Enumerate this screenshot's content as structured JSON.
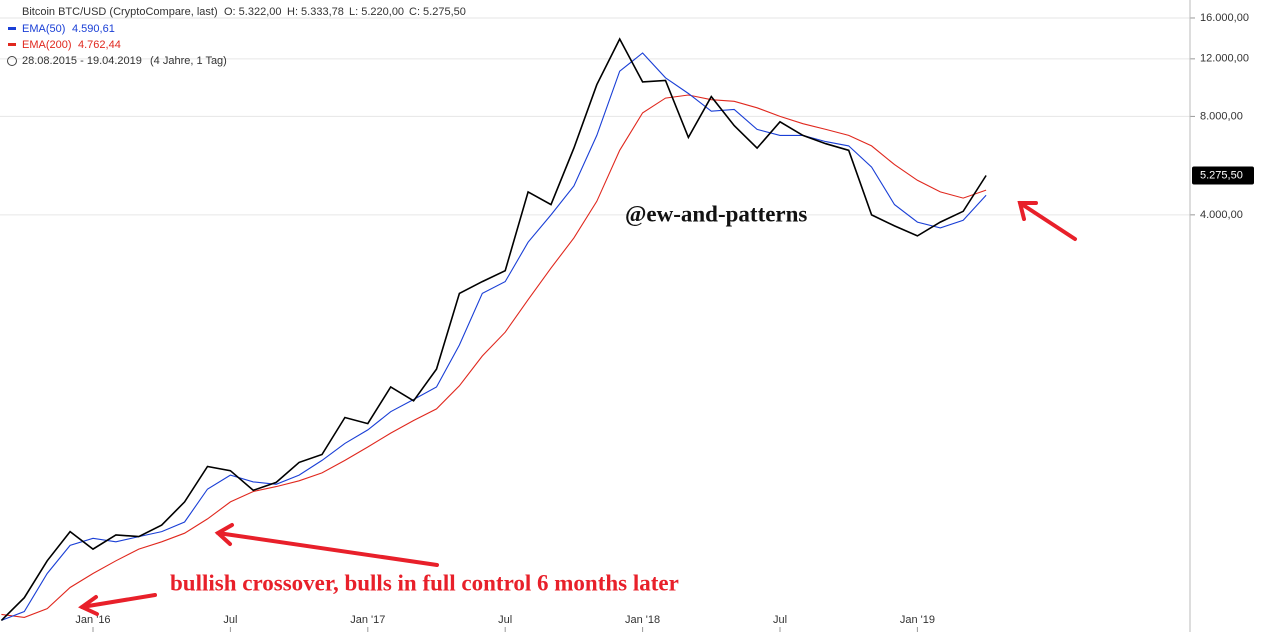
{
  "chart_data": {
    "type": "line",
    "header_stats": [
      "O: 5.322,00",
      "H: 5.333,78",
      "L: 5.220,00",
      "C: 5.275,50"
    ],
    "date_range": "28.08.2015 - 19.04.2019",
    "span": "(4 Jahre, 1 Tag)",
    "annotations": [
      "@ew-and-patterns",
      "bullish crossover, bulls in full control 6 months later"
    ],
    "x": [
      "2015-09",
      "2015-10",
      "2015-11",
      "2015-12",
      "2016-01",
      "2016-02",
      "2016-03",
      "2016-04",
      "2016-05",
      "2016-06",
      "2016-07",
      "2016-08",
      "2016-09",
      "2016-10",
      "2016-11",
      "2016-12",
      "2017-01",
      "2017-02",
      "2017-03",
      "2017-04",
      "2017-05",
      "2017-06",
      "2017-07",
      "2017-08",
      "2017-09",
      "2017-10",
      "2017-11",
      "2017-12",
      "2018-01",
      "2018-02",
      "2018-03",
      "2018-04",
      "2018-05",
      "2018-06",
      "2018-07",
      "2018-08",
      "2018-09",
      "2018-10",
      "2018-11",
      "2018-12",
      "2019-01",
      "2019-02",
      "2019-03",
      "2019-04"
    ],
    "series": [
      {
        "name": "Bitcoin BTC/USD (CryptoCompare, last)",
        "color": "#000000",
        "values": [
          230,
          270,
          350,
          430,
          380,
          420,
          415,
          450,
          530,
          680,
          660,
          575,
          608,
          700,
          740,
          960,
          920,
          1190,
          1080,
          1350,
          2300,
          2500,
          2700,
          4700,
          4300,
          6400,
          10000,
          13800,
          10200,
          10300,
          6900,
          9200,
          7500,
          6400,
          7700,
          7000,
          6600,
          6300,
          4000,
          3700,
          3450,
          3800,
          4100,
          5275.5
        ],
        "value_labels": [
          null,
          null,
          null,
          null,
          null,
          null,
          null,
          null,
          null,
          null,
          null,
          null,
          null,
          null,
          null,
          null,
          null,
          null,
          null,
          null,
          null,
          null,
          null,
          null,
          null,
          null,
          null,
          null,
          null,
          null,
          null,
          null,
          null,
          null,
          null,
          null,
          null,
          null,
          null,
          null,
          null,
          null,
          null,
          "5.275,50"
        ]
      },
      {
        "name": "EMA(50)",
        "color": "#1a3fd6",
        "values": [
          230,
          245,
          320,
          390,
          410,
          400,
          415,
          430,
          460,
          580,
          640,
          610,
          600,
          640,
          710,
          800,
          880,
          1000,
          1090,
          1190,
          1600,
          2300,
          2500,
          3300,
          4000,
          4900,
          7000,
          11000,
          12500,
          10500,
          9400,
          8300,
          8400,
          7300,
          7000,
          7000,
          6700,
          6500,
          5600,
          4300,
          3800,
          3650,
          3850,
          4590.61
        ],
        "value_labels": [
          null,
          null,
          null,
          null,
          null,
          null,
          null,
          null,
          null,
          null,
          null,
          null,
          null,
          null,
          null,
          null,
          null,
          null,
          null,
          null,
          null,
          null,
          null,
          null,
          null,
          null,
          null,
          null,
          null,
          null,
          null,
          null,
          null,
          null,
          null,
          null,
          null,
          null,
          null,
          null,
          null,
          null,
          null,
          "4.590,61"
        ]
      },
      {
        "name": "EMA(200)",
        "color": "#e0281e",
        "values": [
          240,
          235,
          250,
          290,
          320,
          350,
          380,
          400,
          425,
          470,
          530,
          570,
          590,
          615,
          650,
          710,
          780,
          860,
          940,
          1020,
          1200,
          1480,
          1750,
          2200,
          2750,
          3400,
          4400,
          6300,
          8200,
          9100,
          9300,
          9000,
          8900,
          8500,
          8000,
          7600,
          7300,
          7000,
          6500,
          5700,
          5100,
          4700,
          4500,
          4762.44
        ],
        "value_labels": [
          null,
          null,
          null,
          null,
          null,
          null,
          null,
          null,
          null,
          null,
          null,
          null,
          null,
          null,
          null,
          null,
          null,
          null,
          null,
          null,
          null,
          null,
          null,
          null,
          null,
          null,
          null,
          null,
          null,
          null,
          null,
          null,
          null,
          null,
          null,
          null,
          null,
          null,
          null,
          null,
          null,
          null,
          null,
          "4.762,44"
        ]
      }
    ],
    "xticks": [
      {
        "value": "2016-01",
        "label": "Jan '16"
      },
      {
        "value": "2016-07",
        "label": "Jul"
      },
      {
        "value": "2017-01",
        "label": "Jan '17"
      },
      {
        "value": "2017-07",
        "label": "Jul"
      },
      {
        "value": "2018-01",
        "label": "Jan '18"
      },
      {
        "value": "2018-07",
        "label": "Jul"
      },
      {
        "value": "2019-01",
        "label": "Jan '19"
      }
    ],
    "ylim": [
      212,
      18160
    ],
    "yticks": [
      {
        "value": 4000,
        "label": "4.000,00"
      },
      {
        "value": 8000,
        "label": "8.000,00"
      },
      {
        "value": 12000,
        "label": "12.000,00"
      },
      {
        "value": 16000,
        "label": "16.000,00"
      }
    ],
    "log_scale": true,
    "grid": true
  }
}
